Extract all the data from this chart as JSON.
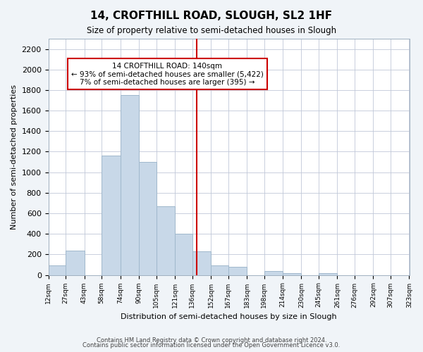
{
  "title": "14, CROFTHILL ROAD, SLOUGH, SL2 1HF",
  "subtitle": "Size of property relative to semi-detached houses in Slough",
  "xlabel": "Distribution of semi-detached houses by size in Slough",
  "ylabel": "Number of semi-detached properties",
  "bar_left_edges": [
    12,
    27,
    43,
    58,
    74,
    90,
    105,
    121,
    136,
    152,
    167,
    183,
    198,
    214,
    230,
    245,
    261,
    276,
    292,
    307
  ],
  "bar_heights": [
    90,
    240,
    0,
    1160,
    1750,
    1100,
    670,
    400,
    230,
    90,
    80,
    0,
    35,
    20,
    0,
    20,
    0,
    0,
    0,
    0
  ],
  "bar_widths": [
    15,
    16,
    15,
    16,
    16,
    15,
    16,
    15,
    16,
    15,
    16,
    15,
    16,
    16,
    15,
    16,
    15,
    16,
    15,
    16
  ],
  "tick_labels": [
    "12sqm",
    "27sqm",
    "43sqm",
    "58sqm",
    "74sqm",
    "90sqm",
    "105sqm",
    "121sqm",
    "136sqm",
    "152sqm",
    "167sqm",
    "183sqm",
    "198sqm",
    "214sqm",
    "230sqm",
    "245sqm",
    "261sqm",
    "276sqm",
    "292sqm",
    "307sqm",
    "323sqm"
  ],
  "tick_positions": [
    12,
    27,
    43,
    58,
    74,
    90,
    105,
    121,
    136,
    152,
    167,
    183,
    198,
    214,
    230,
    245,
    261,
    276,
    292,
    307,
    323
  ],
  "bar_color": "#c8d8e8",
  "bar_edge_color": "#a0b8cc",
  "vline_x": 140,
  "vline_color": "#cc0000",
  "annotation_title": "14 CROFTHILL ROAD: 140sqm",
  "annotation_line1": "← 93% of semi-detached houses are smaller (5,422)",
  "annotation_line2": "7% of semi-detached houses are larger (395) →",
  "ylim": [
    0,
    2300
  ],
  "xlim": [
    12,
    323
  ],
  "yticks": [
    0,
    200,
    400,
    600,
    800,
    1000,
    1200,
    1400,
    1600,
    1800,
    2000,
    2200
  ],
  "footer1": "Contains HM Land Registry data © Crown copyright and database right 2024.",
  "footer2": "Contains public sector information licensed under the Open Government Licence v3.0.",
  "bg_color": "#f0f4f8",
  "plot_bg_color": "#ffffff"
}
